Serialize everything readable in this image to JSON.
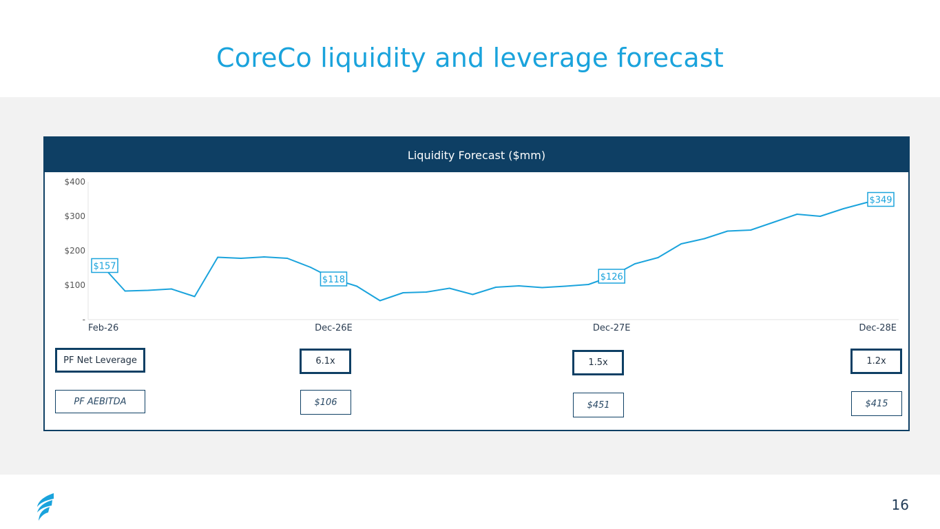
{
  "slide": {
    "title": "CoreCo liquidity and leverage forecast",
    "page_number": "16"
  },
  "panel": {
    "header": "Liquidity Forecast ($mm)"
  },
  "chart_data": {
    "type": "line",
    "title": "Liquidity Forecast ($mm)",
    "ylim": [
      0,
      400
    ],
    "y_ticks": [
      {
        "value": 0,
        "label": "-"
      },
      {
        "value": 100,
        "label": "$100"
      },
      {
        "value": 200,
        "label": "$200"
      },
      {
        "value": 300,
        "label": "$300"
      },
      {
        "value": 400,
        "label": "$400"
      }
    ],
    "x_labels": [
      {
        "index": 0,
        "label": "Feb-26"
      },
      {
        "index": 10,
        "label": "Dec-26E"
      },
      {
        "index": 22,
        "label": "Dec-27E"
      },
      {
        "index": 34,
        "label": "Dec-28E"
      }
    ],
    "values": [
      157,
      83,
      85,
      89,
      67,
      181,
      178,
      182,
      178,
      152,
      118,
      97,
      55,
      78,
      80,
      91,
      73,
      94,
      98,
      93,
      97,
      102,
      126,
      162,
      180,
      220,
      235,
      257,
      260,
      283,
      306,
      300,
      322,
      340,
      349
    ],
    "data_labels": [
      {
        "index": 0,
        "label": "$157"
      },
      {
        "index": 10,
        "label": "$118"
      },
      {
        "index": 22,
        "label": "$126"
      },
      {
        "index": 34,
        "label": "$349"
      }
    ],
    "grid": false,
    "line_color": "#1aa3dc"
  },
  "rows": {
    "leverage": {
      "label": "PF Net Leverage",
      "values": [
        "6.1x",
        "1.5x",
        "1.2x"
      ]
    },
    "aebitda": {
      "label": "PF AEBITDA",
      "values": [
        "$106",
        "$451",
        "$415"
      ]
    }
  },
  "colors": {
    "accent": "#1aa3dc",
    "navy": "#0e3f64",
    "band": "#f2f2f2"
  },
  "icons": {
    "logo": "flame-logo-icon"
  }
}
